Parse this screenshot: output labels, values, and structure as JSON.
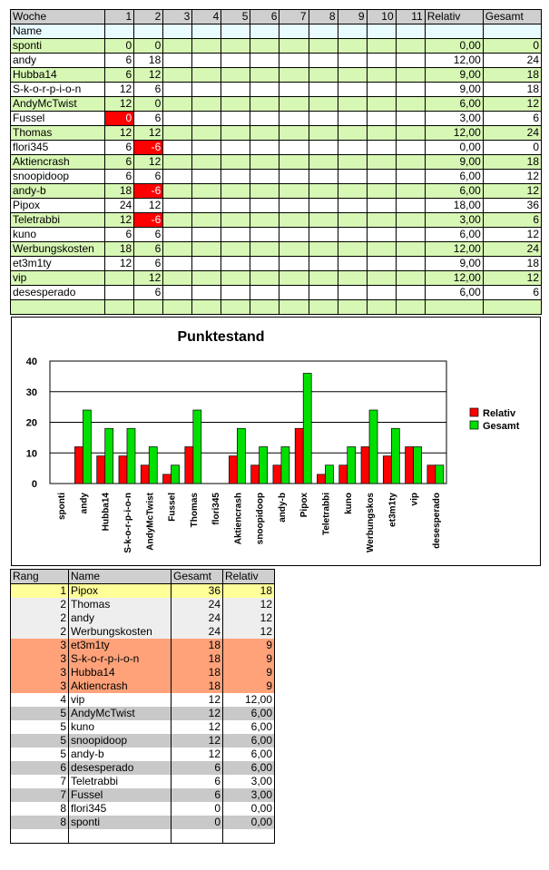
{
  "weekly": {
    "headers": [
      "Woche",
      "1",
      "2",
      "3",
      "4",
      "5",
      "6",
      "7",
      "8",
      "9",
      "10",
      "11",
      "Relativ",
      "Gesamt"
    ],
    "name_label": "Name",
    "rows": [
      {
        "name": "sponti",
        "w1": "0",
        "w2": "0",
        "relativ": "0,00",
        "gesamt": "0"
      },
      {
        "name": "andy",
        "w1": "6",
        "w2": "18",
        "relativ": "12,00",
        "gesamt": "24"
      },
      {
        "name": "Hubba14",
        "w1": "6",
        "w2": "12",
        "relativ": "9,00",
        "gesamt": "18"
      },
      {
        "name": "S-k-o-r-p-i-o-n",
        "w1": "12",
        "w2": "6",
        "relativ": "9,00",
        "gesamt": "18"
      },
      {
        "name": "AndyMcTwist",
        "w1": "12",
        "w2": "0",
        "relativ": "6,00",
        "gesamt": "12"
      },
      {
        "name": "Fussel",
        "w1": "0",
        "w2": "6",
        "relativ": "3,00",
        "gesamt": "6"
      },
      {
        "name": "Thomas",
        "w1": "12",
        "w2": "12",
        "relativ": "12,00",
        "gesamt": "24"
      },
      {
        "name": "flori345",
        "w1": "6",
        "w2": "-6",
        "relativ": "0,00",
        "gesamt": "0"
      },
      {
        "name": "Aktiencrash",
        "w1": "6",
        "w2": "12",
        "relativ": "9,00",
        "gesamt": "18"
      },
      {
        "name": "snoopidoop",
        "w1": "6",
        "w2": "6",
        "relativ": "6,00",
        "gesamt": "12"
      },
      {
        "name": "andy-b",
        "w1": "18",
        "w2": "-6",
        "relativ": "6,00",
        "gesamt": "12"
      },
      {
        "name": "Pipox",
        "w1": "24",
        "w2": "12",
        "relativ": "18,00",
        "gesamt": "36"
      },
      {
        "name": "Teletrabbi",
        "w1": "12",
        "w2": "-6",
        "relativ": "3,00",
        "gesamt": "6"
      },
      {
        "name": "kuno",
        "w1": "6",
        "w2": "6",
        "relativ": "6,00",
        "gesamt": "12"
      },
      {
        "name": "Werbungskosten",
        "w1": "18",
        "w2": "6",
        "relativ": "12,00",
        "gesamt": "24"
      },
      {
        "name": "et3m1ty",
        "w1": "12",
        "w2": "6",
        "relativ": "9,00",
        "gesamt": "18"
      },
      {
        "name": "vip",
        "w1": "",
        "w2": "12",
        "relativ": "12,00",
        "gesamt": "12"
      },
      {
        "name": "desesperado",
        "w1": "",
        "w2": "6",
        "relativ": "6,00",
        "gesamt": "6"
      }
    ]
  },
  "chart_data": {
    "type": "bar",
    "title": "Punktestand",
    "categories": [
      "sponti",
      "andy",
      "Hubba14",
      "S-k-o-r-p-i-o-n",
      "AndyMcTwist",
      "Fussel",
      "Thomas",
      "flori345",
      "Aktiencrash",
      "snoopidoop",
      "andy-b",
      "Pipox",
      "Teletrabbi",
      "kuno",
      "Werbungskos",
      "et3m1ty",
      "vip",
      "desesperado"
    ],
    "series": [
      {
        "name": "Relativ",
        "color": "#ff0000",
        "values": [
          0,
          12,
          9,
          9,
          6,
          3,
          12,
          0,
          9,
          6,
          6,
          18,
          3,
          6,
          12,
          9,
          12,
          6
        ]
      },
      {
        "name": "Gesamt",
        "color": "#00e000",
        "values": [
          0,
          24,
          18,
          18,
          12,
          6,
          24,
          0,
          18,
          12,
          12,
          36,
          6,
          12,
          24,
          18,
          12,
          6
        ]
      }
    ],
    "ylim": [
      0,
      40
    ],
    "yticks": [
      0,
      10,
      20,
      30,
      40
    ],
    "legend": "right",
    "grid": true
  },
  "ranking": {
    "headers": [
      "Rang",
      "Name",
      "Gesamt",
      "Relativ"
    ],
    "rows": [
      {
        "rang": "1",
        "name": "Pipox",
        "gesamt": "36",
        "relativ": "18",
        "style": "yellow"
      },
      {
        "rang": "2",
        "name": "Thomas",
        "gesamt": "24",
        "relativ": "12",
        "style": "lgrey"
      },
      {
        "rang": "2",
        "name": "andy",
        "gesamt": "24",
        "relativ": "12",
        "style": "lgrey"
      },
      {
        "rang": "2",
        "name": "Werbungskosten",
        "gesamt": "24",
        "relativ": "12",
        "style": "lgrey"
      },
      {
        "rang": "3",
        "name": "et3m1ty",
        "gesamt": "18",
        "relativ": "9",
        "style": "orange"
      },
      {
        "rang": "3",
        "name": "S-k-o-r-p-i-o-n",
        "gesamt": "18",
        "relativ": "9",
        "style": "orange"
      },
      {
        "rang": "3",
        "name": "Hubba14",
        "gesamt": "18",
        "relativ": "9",
        "style": "orange"
      },
      {
        "rang": "3",
        "name": "Aktiencrash",
        "gesamt": "18",
        "relativ": "9",
        "style": "orange"
      },
      {
        "rang": "4",
        "name": "vip",
        "gesamt": "12",
        "relativ": "12,00",
        "style": "white"
      },
      {
        "rang": "5",
        "name": "AndyMcTwist",
        "gesamt": "12",
        "relativ": "6,00",
        "style": "dgrey"
      },
      {
        "rang": "5",
        "name": "kuno",
        "gesamt": "12",
        "relativ": "6,00",
        "style": "white"
      },
      {
        "rang": "5",
        "name": "snoopidoop",
        "gesamt": "12",
        "relativ": "6,00",
        "style": "dgrey"
      },
      {
        "rang": "5",
        "name": "andy-b",
        "gesamt": "12",
        "relativ": "6,00",
        "style": "white"
      },
      {
        "rang": "6",
        "name": "desesperado",
        "gesamt": "6",
        "relativ": "6,00",
        "style": "dgrey"
      },
      {
        "rang": "7",
        "name": "Teletrabbi",
        "gesamt": "6",
        "relativ": "3,00",
        "style": "white"
      },
      {
        "rang": "7",
        "name": "Fussel",
        "gesamt": "6",
        "relativ": "3,00",
        "style": "dgrey"
      },
      {
        "rang": "8",
        "name": "flori345",
        "gesamt": "0",
        "relativ": "0,00",
        "style": "white"
      },
      {
        "rang": "8",
        "name": "sponti",
        "gesamt": "0",
        "relativ": "0,00",
        "style": "dgrey"
      }
    ]
  }
}
